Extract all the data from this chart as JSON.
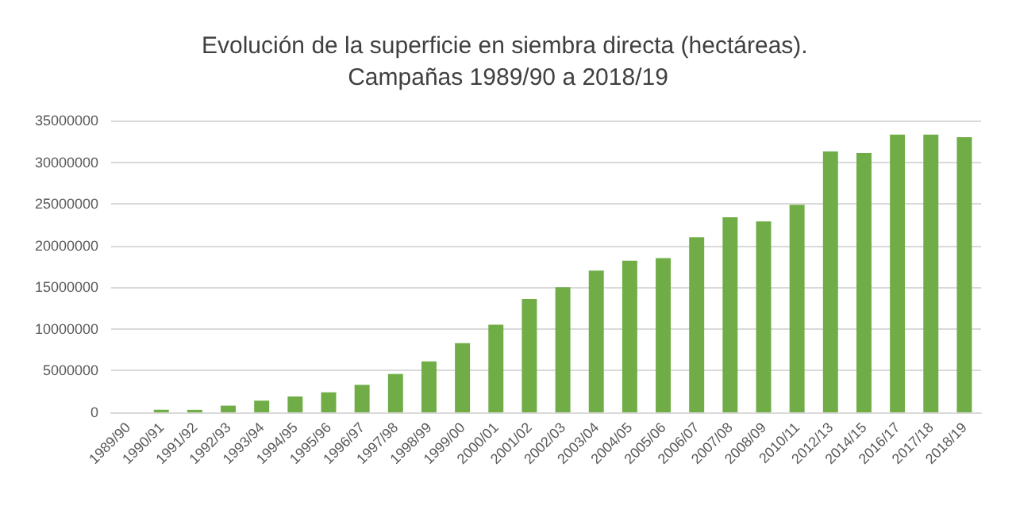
{
  "chart_data": {
    "type": "bar",
    "title": "Evolución de la superficie en siembra directa (hectáreas). Campañas 1989/90 a 2018/19",
    "categories": [
      "1989/90",
      "1990/91",
      "1991/92",
      "1992/93",
      "1993/94",
      "1994/95",
      "1995/96",
      "1996/97",
      "1997/98",
      "1998/99",
      "1999/00",
      "2000/01",
      "2001/02",
      "2002/03",
      "2003/04",
      "2004/05",
      "2005/06",
      "2006/07",
      "2007/08",
      "2008/09",
      "2010/11",
      "2012/13",
      "2014/15",
      "2016/17",
      "2017/18",
      "2018/19"
    ],
    "values": [
      0,
      300000,
      300000,
      800000,
      1400000,
      1900000,
      2400000,
      3300000,
      4600000,
      6100000,
      8300000,
      10500000,
      13600000,
      15000000,
      17000000,
      18200000,
      18500000,
      21000000,
      23400000,
      22900000,
      24900000,
      31300000,
      31100000,
      33300000,
      33300000,
      33000000
    ],
    "color": "#70ad47",
    "ylim": [
      0,
      35000000
    ],
    "yticks": [
      0,
      5000000,
      10000000,
      15000000,
      20000000,
      25000000,
      30000000,
      35000000
    ],
    "grid": "y"
  }
}
